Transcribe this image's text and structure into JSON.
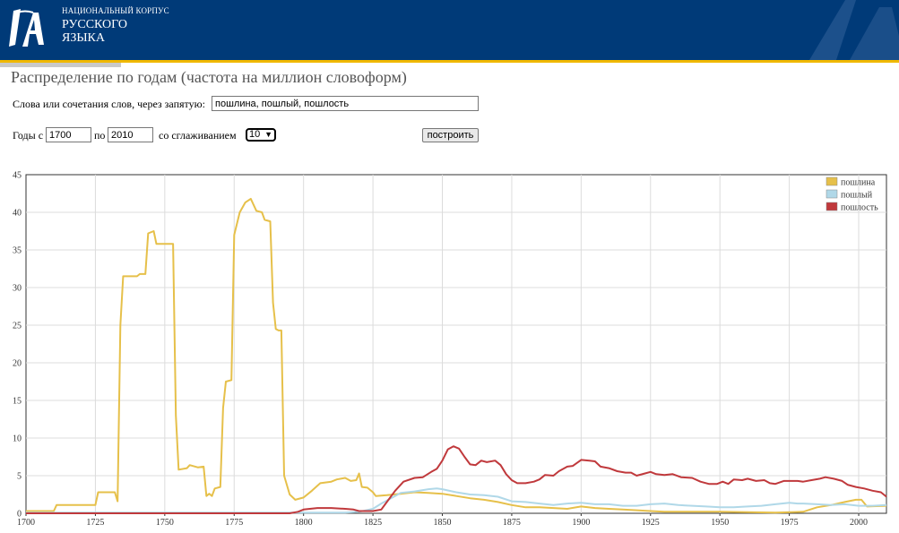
{
  "header": {
    "brand_top": "НАЦИОНАЛЬНЫЙ КОРПУС",
    "brand_line1": "РУССКОГО",
    "brand_line2": "ЯЗЫКА",
    "colors": {
      "background": "#003a78",
      "accent": "#f0b800"
    }
  },
  "page": {
    "title": "Распределение по годам (частота на миллион словоформ)"
  },
  "form": {
    "words_label": "Слова или сочетания слов, через запятую:",
    "words_value": "пошлина, пошлый, пошлость",
    "years_from_label": "Годы с",
    "year_from": "1700",
    "years_to_label": "по",
    "year_to": "2010",
    "smoothing_label": "со сглаживанием",
    "smoothing_value": "10",
    "build_button": "построить"
  },
  "chart_data": {
    "type": "line",
    "xlim": [
      1700,
      2010
    ],
    "ylim": [
      0,
      45
    ],
    "x_ticks": [
      1700,
      1725,
      1750,
      1775,
      1800,
      1825,
      1850,
      1875,
      1900,
      1925,
      1950,
      1975,
      2000
    ],
    "y_ticks": [
      0,
      5,
      10,
      15,
      20,
      25,
      30,
      35,
      40,
      45
    ],
    "grid": true,
    "legend_position": "top-right",
    "series": [
      {
        "name": "пошлина",
        "color": "#e6c04a",
        "points": [
          [
            1700,
            0.3
          ],
          [
            1710,
            0.3
          ],
          [
            1711,
            1.1
          ],
          [
            1725,
            1.1
          ],
          [
            1726,
            2.8
          ],
          [
            1732,
            2.8
          ],
          [
            1733,
            1.6
          ],
          [
            1734,
            25
          ],
          [
            1735,
            31.5
          ],
          [
            1740,
            31.5
          ],
          [
            1741,
            31.8
          ],
          [
            1743,
            31.8
          ],
          [
            1744,
            37.2
          ],
          [
            1746,
            37.5
          ],
          [
            1747,
            35.8
          ],
          [
            1753,
            35.8
          ],
          [
            1754,
            13
          ],
          [
            1755,
            5.8
          ],
          [
            1758,
            6
          ],
          [
            1759,
            6.4
          ],
          [
            1762,
            6.1
          ],
          [
            1764,
            6.2
          ],
          [
            1765,
            2.3
          ],
          [
            1766,
            2.6
          ],
          [
            1767,
            2.3
          ],
          [
            1768,
            3.3
          ],
          [
            1770,
            3.5
          ],
          [
            1771,
            14
          ],
          [
            1772,
            17.5
          ],
          [
            1774,
            17.7
          ],
          [
            1775,
            37
          ],
          [
            1777,
            40
          ],
          [
            1779,
            41.3
          ],
          [
            1781,
            41.8
          ],
          [
            1783,
            40.2
          ],
          [
            1785,
            40
          ],
          [
            1786,
            39
          ],
          [
            1788,
            38.8
          ],
          [
            1789,
            28
          ],
          [
            1790,
            24.5
          ],
          [
            1791,
            24.3
          ],
          [
            1792,
            24.3
          ],
          [
            1793,
            5
          ],
          [
            1795,
            2.5
          ],
          [
            1797,
            1.8
          ],
          [
            1800,
            2.1
          ],
          [
            1803,
            3
          ],
          [
            1806,
            4
          ],
          [
            1810,
            4.2
          ],
          [
            1812,
            4.5
          ],
          [
            1815,
            4.7
          ],
          [
            1817,
            4.3
          ],
          [
            1819,
            4.4
          ],
          [
            1820,
            5.3
          ],
          [
            1821,
            3.5
          ],
          [
            1823,
            3.4
          ],
          [
            1825,
            2.8
          ],
          [
            1826,
            2.3
          ],
          [
            1830,
            2.4
          ],
          [
            1835,
            2.6
          ],
          [
            1840,
            2.8
          ],
          [
            1845,
            2.7
          ],
          [
            1850,
            2.6
          ],
          [
            1855,
            2.3
          ],
          [
            1860,
            2
          ],
          [
            1865,
            1.8
          ],
          [
            1870,
            1.5
          ],
          [
            1875,
            1.1
          ],
          [
            1880,
            0.8
          ],
          [
            1885,
            0.8
          ],
          [
            1890,
            0.7
          ],
          [
            1895,
            0.6
          ],
          [
            1900,
            0.9
          ],
          [
            1905,
            0.7
          ],
          [
            1910,
            0.6
          ],
          [
            1915,
            0.5
          ],
          [
            1920,
            0.4
          ],
          [
            1925,
            0.3
          ],
          [
            1930,
            0.2
          ],
          [
            1940,
            0.2
          ],
          [
            1950,
            0.2
          ],
          [
            1960,
            0.15
          ],
          [
            1970,
            0.1
          ],
          [
            1980,
            0.2
          ],
          [
            1985,
            0.8
          ],
          [
            1990,
            1.1
          ],
          [
            1995,
            1.5
          ],
          [
            1999,
            1.8
          ],
          [
            2001,
            1.8
          ],
          [
            2003,
            0.9
          ],
          [
            2010,
            1
          ]
        ]
      },
      {
        "name": "пошлый",
        "color": "#b0d8e8",
        "points": [
          [
            1700,
            0.1
          ],
          [
            1790,
            0.1
          ],
          [
            1800,
            0.1
          ],
          [
            1815,
            0.1
          ],
          [
            1820,
            0.2
          ],
          [
            1825,
            0.6
          ],
          [
            1828,
            1.3
          ],
          [
            1832,
            2.1
          ],
          [
            1835,
            2.7
          ],
          [
            1840,
            2.9
          ],
          [
            1845,
            3.2
          ],
          [
            1848,
            3.3
          ],
          [
            1850,
            3.2
          ],
          [
            1855,
            2.8
          ],
          [
            1860,
            2.5
          ],
          [
            1865,
            2.4
          ],
          [
            1870,
            2.2
          ],
          [
            1875,
            1.6
          ],
          [
            1880,
            1.5
          ],
          [
            1885,
            1.3
          ],
          [
            1890,
            1.1
          ],
          [
            1895,
            1.3
          ],
          [
            1900,
            1.4
          ],
          [
            1905,
            1.2
          ],
          [
            1910,
            1.2
          ],
          [
            1915,
            1
          ],
          [
            1920,
            1
          ],
          [
            1925,
            1.2
          ],
          [
            1930,
            1.3
          ],
          [
            1935,
            1.1
          ],
          [
            1940,
            1
          ],
          [
            1945,
            0.9
          ],
          [
            1950,
            0.8
          ],
          [
            1955,
            0.8
          ],
          [
            1960,
            0.9
          ],
          [
            1965,
            1
          ],
          [
            1970,
            1.2
          ],
          [
            1975,
            1.4
          ],
          [
            1978,
            1.3
          ],
          [
            1980,
            1.3
          ],
          [
            1985,
            1.2
          ],
          [
            1990,
            1.1
          ],
          [
            1995,
            1.2
          ],
          [
            2000,
            1
          ],
          [
            2005,
            1
          ],
          [
            2010,
            1.1
          ]
        ]
      },
      {
        "name": "пошлость",
        "color": "#c0393c",
        "points": [
          [
            1700,
            0
          ],
          [
            1795,
            0
          ],
          [
            1798,
            0.2
          ],
          [
            1800,
            0.5
          ],
          [
            1805,
            0.7
          ],
          [
            1810,
            0.7
          ],
          [
            1815,
            0.6
          ],
          [
            1818,
            0.5
          ],
          [
            1820,
            0.3
          ],
          [
            1825,
            0.3
          ],
          [
            1828,
            0.5
          ],
          [
            1830,
            1.5
          ],
          [
            1833,
            3
          ],
          [
            1836,
            4.2
          ],
          [
            1840,
            4.7
          ],
          [
            1843,
            4.8
          ],
          [
            1846,
            5.5
          ],
          [
            1848,
            5.9
          ],
          [
            1850,
            7
          ],
          [
            1852,
            8.5
          ],
          [
            1854,
            8.9
          ],
          [
            1856,
            8.6
          ],
          [
            1858,
            7.5
          ],
          [
            1860,
            6.5
          ],
          [
            1862,
            6.4
          ],
          [
            1864,
            7
          ],
          [
            1866,
            6.8
          ],
          [
            1869,
            7
          ],
          [
            1871,
            6.4
          ],
          [
            1873,
            5.2
          ],
          [
            1875,
            4.4
          ],
          [
            1877,
            4
          ],
          [
            1880,
            4
          ],
          [
            1883,
            4.2
          ],
          [
            1885,
            4.5
          ],
          [
            1887,
            5.1
          ],
          [
            1890,
            5
          ],
          [
            1892,
            5.6
          ],
          [
            1895,
            6.2
          ],
          [
            1897,
            6.3
          ],
          [
            1900,
            7.1
          ],
          [
            1903,
            7
          ],
          [
            1905,
            6.9
          ],
          [
            1907,
            6.2
          ],
          [
            1910,
            6
          ],
          [
            1913,
            5.6
          ],
          [
            1916,
            5.4
          ],
          [
            1918,
            5.4
          ],
          [
            1920,
            5
          ],
          [
            1923,
            5.3
          ],
          [
            1925,
            5.5
          ],
          [
            1927,
            5.2
          ],
          [
            1930,
            5.1
          ],
          [
            1933,
            5.2
          ],
          [
            1936,
            4.8
          ],
          [
            1940,
            4.7
          ],
          [
            1943,
            4.2
          ],
          [
            1946,
            3.9
          ],
          [
            1949,
            3.9
          ],
          [
            1951,
            4.2
          ],
          [
            1953,
            3.9
          ],
          [
            1955,
            4.5
          ],
          [
            1958,
            4.4
          ],
          [
            1960,
            4.6
          ],
          [
            1963,
            4.3
          ],
          [
            1966,
            4.4
          ],
          [
            1968,
            4
          ],
          [
            1970,
            3.9
          ],
          [
            1973,
            4.3
          ],
          [
            1975,
            4.3
          ],
          [
            1978,
            4.3
          ],
          [
            1980,
            4.2
          ],
          [
            1983,
            4.4
          ],
          [
            1986,
            4.6
          ],
          [
            1988,
            4.8
          ],
          [
            1991,
            4.6
          ],
          [
            1994,
            4.3
          ],
          [
            1996,
            3.8
          ],
          [
            1999,
            3.5
          ],
          [
            2002,
            3.3
          ],
          [
            2005,
            3
          ],
          [
            2008,
            2.8
          ],
          [
            2010,
            2.2
          ]
        ]
      }
    ]
  }
}
